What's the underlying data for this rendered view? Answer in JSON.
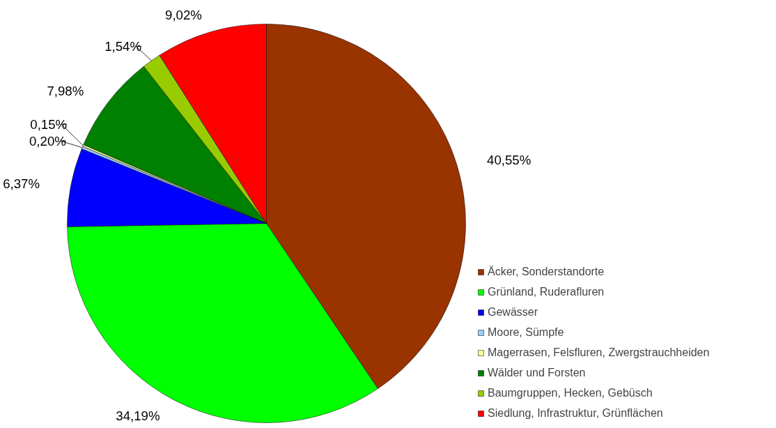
{
  "chart_data": {
    "type": "pie",
    "categories": [
      "Äcker, Sonderstandorte",
      "Grünland, Ruderafluren",
      "Gewässer",
      "Moore, Sümpfe",
      "Magerrasen, Felsfluren, Zwergstrauchheiden",
      "Wälder und Forsten",
      "Baumgruppen, Hecken, Gebüsch",
      "Siedlung, Infrastruktur, Grünflächen"
    ],
    "values": [
      40.55,
      34.19,
      6.37,
      0.2,
      0.15,
      7.98,
      1.54,
      9.02
    ],
    "colors": [
      "#993300",
      "#00ff00",
      "#0000ff",
      "#99ccff",
      "#ffff99",
      "#008000",
      "#99cc00",
      "#ff0000"
    ],
    "value_labels": [
      "40,55%",
      "34,19%",
      "6,37%",
      "0,20%",
      "0,15%",
      "7,98%",
      "1,54%",
      "9,02%"
    ],
    "legend": "right"
  }
}
